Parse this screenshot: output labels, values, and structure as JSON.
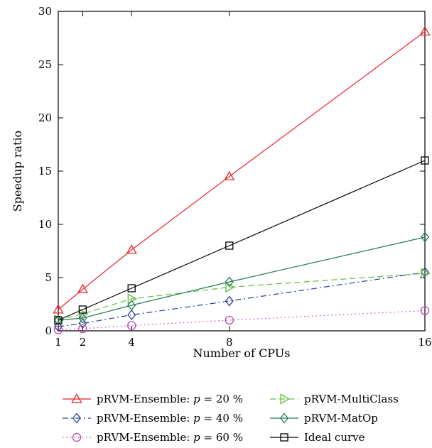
{
  "chart_data": {
    "type": "line",
    "title": "",
    "xlabel": "Number of CPUs",
    "ylabel": "Speedup ratio",
    "xlim": [
      1,
      16
    ],
    "ylim": [
      0,
      30
    ],
    "xticks": [
      1,
      2,
      4,
      8,
      16
    ],
    "yticks": [
      0,
      5,
      10,
      15,
      20,
      25,
      30
    ],
    "grid": false,
    "legend_position": "bottom",
    "series": [
      {
        "name_prefix": "pRVM-Ensemble: ",
        "name_var": "p",
        "name_suffix": " = 20 %",
        "x": [
          1,
          2,
          4,
          8,
          16
        ],
        "y": [
          2.0,
          3.9,
          7.6,
          14.5,
          28.1
        ],
        "color": "#e8252a",
        "dash": "solid",
        "marker": "triangle-up"
      },
      {
        "name_prefix": "pRVM-Ensemble: ",
        "name_var": "p",
        "name_suffix": " = 40 %",
        "x": [
          1,
          2,
          4,
          8,
          16
        ],
        "y": [
          0.4,
          0.7,
          1.5,
          2.8,
          5.5
        ],
        "color": "#2a3f9b",
        "dash": "dashdot",
        "marker": "diamond"
      },
      {
        "name_prefix": "pRVM-Ensemble: ",
        "name_var": "p",
        "name_suffix": " = 60 %",
        "x": [
          1,
          2,
          4,
          8,
          16
        ],
        "y": [
          0.1,
          0.2,
          0.5,
          1.0,
          1.9
        ],
        "color": "#c040b0",
        "dash": "dotted",
        "marker": "circle"
      },
      {
        "name": "pRVM-MultiClass",
        "x": [
          1,
          2,
          4,
          8,
          16
        ],
        "y": [
          1.0,
          1.6,
          3.0,
          4.1,
          5.4
        ],
        "color": "#5cbf3a",
        "dash": "dashed",
        "marker": "triangle-right"
      },
      {
        "name": "pRVM-MatOp",
        "x": [
          1,
          2,
          4,
          8,
          16
        ],
        "y": [
          1.0,
          1.2,
          2.4,
          4.6,
          8.8
        ],
        "color": "#237a55",
        "dash": "solid",
        "marker": "diamond"
      },
      {
        "name": "Ideal curve",
        "x": [
          1,
          2,
          4,
          8,
          16
        ],
        "y": [
          1,
          2,
          4,
          8,
          16
        ],
        "color": "#000000",
        "dash": "solid",
        "marker": "square"
      }
    ]
  }
}
